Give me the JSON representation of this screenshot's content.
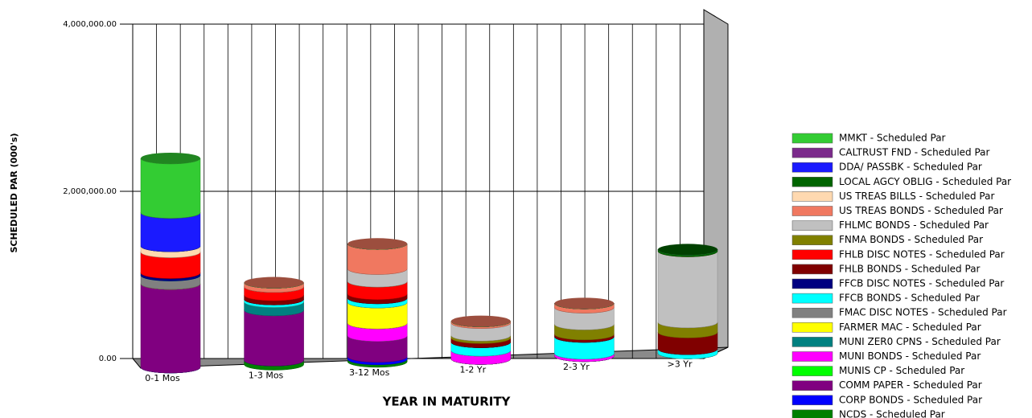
{
  "chart_data": {
    "type": "bar",
    "stacked": true,
    "y_label": "SCHEDULED PAR (000's)",
    "x_label": "YEAR IN MATURITY",
    "categories": [
      "0-1 Mos",
      "1-3 Mos",
      "3-12 Mos",
      "1-2 Yr",
      "2-3 Yr",
      ">3 Yr"
    ],
    "ylim": [
      0,
      4000000
    ],
    "yticks": [
      {
        "value": 0,
        "label": "0.00"
      },
      {
        "value": 2000000,
        "label": "2,000,000.00"
      },
      {
        "value": 4000000,
        "label": "4,000,000.00"
      }
    ],
    "grid": true,
    "legend": "right",
    "series": [
      {
        "name": "MMKT - Scheduled Par",
        "color": "#33cc33",
        "values": [
          650000,
          0,
          0,
          0,
          0,
          0
        ]
      },
      {
        "name": "CALTRUST FND - Scheduled Par",
        "color": "#7b2a8b",
        "values": [
          0,
          0,
          0,
          0,
          0,
          0
        ]
      },
      {
        "name": "DDA/ PASSBK - Scheduled Par",
        "color": "#1a1aff",
        "values": [
          400000,
          0,
          0,
          0,
          0,
          0
        ]
      },
      {
        "name": "LOCAL AGCY OBLIG  - Scheduled Par",
        "color": "#006400",
        "values": [
          0,
          0,
          0,
          0,
          0,
          20000
        ]
      },
      {
        "name": "US TREAS BILLS - Scheduled Par",
        "color": "#ffd9b0",
        "values": [
          70000,
          0,
          0,
          0,
          0,
          0
        ]
      },
      {
        "name": "US TREAS BONDS - Scheduled Par",
        "color": "#f07860",
        "values": [
          0,
          50000,
          300000,
          20000,
          50000,
          0
        ]
      },
      {
        "name": "FHLMC BONDS - Scheduled Par",
        "color": "#c0c0c0",
        "values": [
          0,
          0,
          150000,
          150000,
          200000,
          850000
        ]
      },
      {
        "name": "FNMA BONDS - Scheduled Par",
        "color": "#808000",
        "values": [
          0,
          0,
          0,
          30000,
          120000,
          120000
        ]
      },
      {
        "name": "FHLB DISC NOTES - Scheduled Par",
        "color": "#ff0000",
        "values": [
          250000,
          100000,
          150000,
          0,
          0,
          0
        ]
      },
      {
        "name": "FHLB BONDS - Scheduled Par",
        "color": "#800000",
        "values": [
          0,
          50000,
          50000,
          50000,
          30000,
          200000
        ]
      },
      {
        "name": "FFCB DISC NOTES - Scheduled Par",
        "color": "#000080",
        "values": [
          30000,
          0,
          0,
          0,
          0,
          0
        ]
      },
      {
        "name": "FFCB BONDS - Scheduled Par",
        "color": "#00ffff",
        "values": [
          0,
          30000,
          50000,
          100000,
          200000,
          50000
        ]
      },
      {
        "name": "FMAC DISC NOTES - Scheduled Par",
        "color": "#808080",
        "values": [
          100000,
          0,
          0,
          0,
          0,
          0
        ]
      },
      {
        "name": "FARMER MAC - Scheduled Par",
        "color": "#ffff00",
        "values": [
          0,
          0,
          250000,
          0,
          0,
          0
        ]
      },
      {
        "name": "MUNI ZER0 CPNS - Scheduled Par",
        "color": "#008080",
        "values": [
          0,
          100000,
          0,
          0,
          0,
          0
        ]
      },
      {
        "name": "MUNI BONDS - Scheduled Par",
        "color": "#ff00ff",
        "values": [
          0,
          0,
          150000,
          100000,
          30000,
          0
        ]
      },
      {
        "name": "MUNIS CP - Scheduled Par",
        "color": "#00ff00",
        "values": [
          0,
          0,
          0,
          0,
          0,
          0
        ]
      },
      {
        "name": "COMM PAPER - Scheduled Par",
        "color": "#800080",
        "values": [
          1000000,
          600000,
          250000,
          0,
          0,
          0
        ]
      },
      {
        "name": "CORP BONDS - Scheduled Par",
        "color": "#0000ff",
        "values": [
          0,
          0,
          30000,
          0,
          0,
          0
        ]
      },
      {
        "name": "NCDS - Scheduled Par",
        "color": "#008000",
        "values": [
          0,
          50000,
          30000,
          0,
          0,
          0
        ]
      }
    ]
  }
}
